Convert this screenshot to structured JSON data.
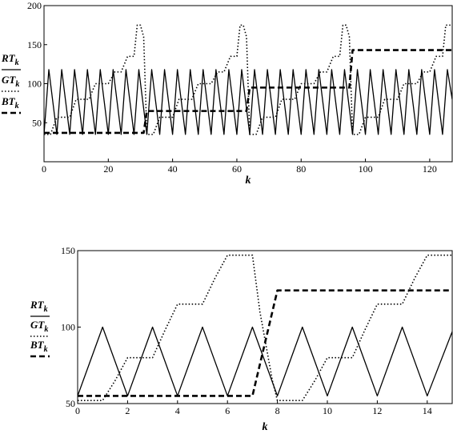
{
  "chart_data": [
    {
      "type": "line",
      "xlabel": "k",
      "xlim": [
        0,
        127
      ],
      "ylim": [
        0,
        200
      ],
      "x_ticks": [
        "0",
        "20",
        "40",
        "60",
        "80",
        "100",
        "120"
      ],
      "y_ticks": [
        "50",
        "100",
        "150",
        "200"
      ],
      "legend": [
        {
          "name": "RT",
          "sub": "k",
          "style": "solid"
        },
        {
          "name": "GT",
          "sub": "k",
          "style": "dotted"
        },
        {
          "name": "BT",
          "sub": "k",
          "style": "dashed"
        }
      ],
      "series": [
        {
          "name": "RT_k",
          "style": "solid",
          "x": [
            0,
            1.5,
            4,
            5.5,
            8,
            9.5,
            12,
            13.5,
            16,
            17.5,
            20,
            21.5,
            24,
            25.5,
            28,
            29.5,
            32,
            33.5,
            36,
            37.5,
            40,
            41.5,
            44,
            45.5,
            48,
            49.5,
            52,
            53.5,
            56,
            57.5,
            60,
            61.5,
            64,
            65.5,
            68,
            69.5,
            72,
            73.5,
            76,
            77.5,
            80,
            81.5,
            84,
            85.5,
            88,
            89.5,
            92,
            93.5,
            96,
            97.5,
            100,
            101.5,
            104,
            105.5,
            108,
            109.5,
            112,
            113.5,
            116,
            117.5,
            120,
            121.5,
            124,
            125.5,
            127
          ],
          "y": [
            35,
            118,
            35,
            118,
            35,
            118,
            35,
            118,
            35,
            118,
            35,
            118,
            35,
            118,
            35,
            118,
            35,
            118,
            35,
            118,
            35,
            118,
            35,
            118,
            35,
            118,
            35,
            118,
            35,
            118,
            35,
            118,
            35,
            118,
            35,
            118,
            35,
            118,
            35,
            118,
            35,
            118,
            35,
            118,
            35,
            118,
            35,
            118,
            35,
            118,
            35,
            118,
            35,
            118,
            35,
            118,
            35,
            118,
            35,
            118,
            35,
            118,
            35,
            118,
            80
          ]
        },
        {
          "name": "GT_k",
          "style": "dotted",
          "x": [
            0,
            2,
            4,
            6,
            8,
            10,
            12,
            14,
            16,
            18,
            20,
            22,
            24,
            26,
            28,
            29,
            30,
            31,
            32,
            34,
            36,
            38,
            40,
            42,
            44,
            46,
            48,
            50,
            52,
            54,
            56,
            58,
            60,
            61,
            62,
            63,
            64,
            66,
            68,
            70,
            72,
            74,
            76,
            78,
            80,
            82,
            84,
            86,
            88,
            90,
            92,
            93,
            94,
            95,
            96,
            98,
            100,
            102,
            104,
            106,
            108,
            110,
            112,
            114,
            116,
            118,
            120,
            122,
            124,
            125,
            126,
            127
          ],
          "y": [
            35,
            35,
            57,
            57,
            57,
            80,
            80,
            80,
            100,
            100,
            100,
            115,
            115,
            135,
            135,
            175,
            175,
            160,
            35,
            35,
            57,
            57,
            57,
            80,
            80,
            80,
            100,
            100,
            100,
            115,
            115,
            135,
            135,
            175,
            175,
            160,
            35,
            35,
            57,
            57,
            57,
            80,
            80,
            80,
            100,
            100,
            100,
            115,
            115,
            135,
            135,
            175,
            175,
            160,
            35,
            35,
            57,
            57,
            57,
            80,
            80,
            80,
            100,
            100,
            100,
            115,
            115,
            135,
            135,
            175,
            175,
            175
          ]
        },
        {
          "name": "BT_k",
          "style": "dashed",
          "x": [
            0,
            31,
            32,
            63,
            64,
            95,
            96,
            127
          ],
          "y": [
            37,
            37,
            65,
            65,
            95,
            95,
            143,
            143
          ]
        }
      ]
    },
    {
      "type": "line",
      "xlabel": "k",
      "xlim": [
        0,
        15
      ],
      "ylim": [
        50,
        150
      ],
      "x_ticks": [
        "0",
        "2",
        "4",
        "6",
        "8",
        "10",
        "12",
        "14"
      ],
      "y_ticks": [
        "50",
        "100",
        "150"
      ],
      "legend": [
        {
          "name": "RT",
          "sub": "k",
          "style": "solid"
        },
        {
          "name": "GT",
          "sub": "k",
          "style": "dotted"
        },
        {
          "name": "BT",
          "sub": "k",
          "style": "dashed"
        }
      ],
      "series": [
        {
          "name": "RT_k",
          "style": "solid",
          "x": [
            0,
            1,
            2,
            3,
            4,
            5,
            6,
            7,
            8,
            9,
            10,
            11,
            12,
            13,
            14,
            15
          ],
          "y": [
            55,
            100,
            55,
            100,
            55,
            100,
            55,
            100,
            55,
            100,
            55,
            100,
            55,
            100,
            55,
            97
          ]
        },
        {
          "name": "GT_k",
          "style": "dotted",
          "x": [
            0,
            1,
            1.5,
            2,
            2.5,
            3,
            3.5,
            4,
            4.5,
            5,
            5.5,
            6,
            6.5,
            7,
            7.3,
            7.8,
            8,
            8.5,
            9,
            9.5,
            10,
            10.5,
            11,
            11.5,
            12,
            12.5,
            13,
            13.5,
            14,
            14.5,
            15
          ],
          "y": [
            52,
            52,
            65,
            80,
            80,
            80,
            98,
            115,
            115,
            115,
            132,
            147,
            147,
            147,
            110,
            65,
            52,
            52,
            52,
            65,
            80,
            80,
            80,
            98,
            115,
            115,
            115,
            132,
            147,
            147,
            147
          ]
        },
        {
          "name": "BT_k",
          "style": "dashed",
          "x": [
            0,
            7,
            8,
            15
          ],
          "y": [
            55,
            55,
            124,
            124
          ]
        }
      ]
    }
  ]
}
